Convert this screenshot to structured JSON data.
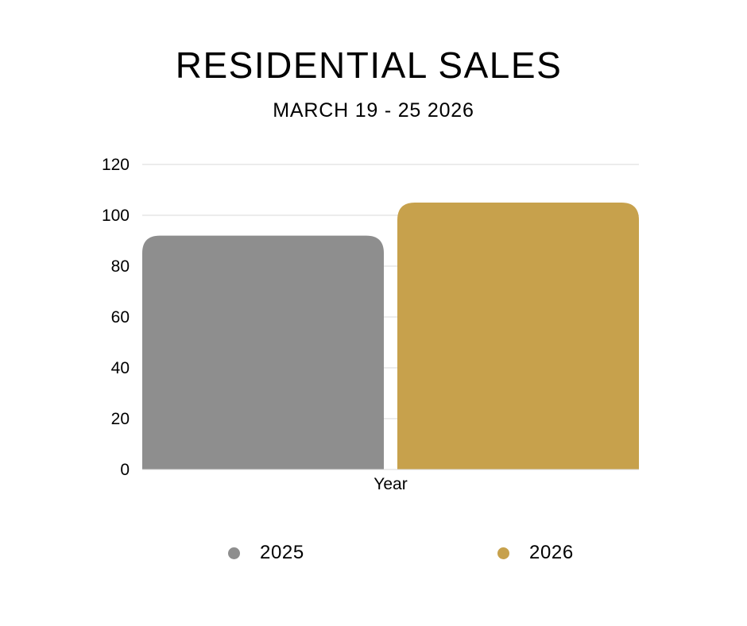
{
  "chart_data": {
    "type": "bar",
    "title": "RESIDENTIAL SALES",
    "subtitle": "MARCH 19 - 25 2026",
    "categories": [
      "Year"
    ],
    "series": [
      {
        "name": "2025",
        "values": [
          92
        ],
        "color": "#8e8e8e"
      },
      {
        "name": "2026",
        "values": [
          105
        ],
        "color": "#c7a14c"
      }
    ],
    "xlabel": "",
    "ylabel": "",
    "ylim": [
      0,
      120
    ],
    "yticks": [
      0,
      20,
      40,
      60,
      80,
      100,
      120
    ],
    "grid": true,
    "legend": "bottom"
  }
}
